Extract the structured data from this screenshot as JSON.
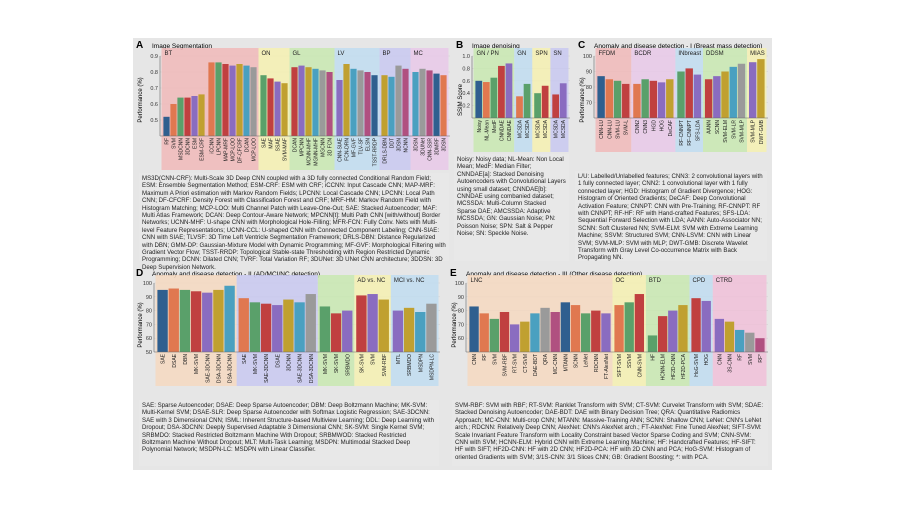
{
  "figure_background": "#e6e6e6",
  "chart_data": [
    {
      "id": "A",
      "type": "bar",
      "letter": "A",
      "title": "Image Segmentation",
      "ylabel": "Performance (%)",
      "ylim": [
        0.4,
        0.9
      ],
      "yticks": [
        "0.5",
        "0.6",
        "0.7",
        "0.8",
        "0.9"
      ],
      "groups": [
        {
          "name": "BT",
          "color": "#f0b8b8",
          "bar_color": "#2f5f8f",
          "categories": [
            "RF",
            "SVM",
            "MSDCNN",
            "3DCNN",
            "ESM",
            "ESM-CRF"
          ],
          "values": [
            0.52,
            0.6,
            0.64,
            0.64,
            0.65,
            0.66
          ]
        },
        {
          "name": "",
          "color": "#f0b8b8",
          "bar_color": "#2f5f8f",
          "categories": [
            "iCCNN",
            "LPCNN",
            "MAP-MRF",
            "MCP-LOO",
            "DF-CFCRF",
            "DCAN",
            "MCP-LOO"
          ],
          "values": [
            0.86,
            0.86,
            0.85,
            0.84,
            0.85,
            0.84,
            0.83
          ]
        },
        {
          "name": "ON",
          "color": "#f5f0b0",
          "bar_color": "#2f5f8f",
          "categories": [
            "SAE",
            "MAF",
            "SSAE",
            "SVM-MAF"
          ],
          "values": [
            0.78,
            0.76,
            0.74,
            0.73
          ]
        },
        {
          "name": "GL",
          "color": "#c8e8b0",
          "bar_color": "#2f5f8f",
          "categories": [
            "DCAN",
            "MPCNN",
            "MCNN-MHF",
            "MGNN-MHF",
            "MGCNN",
            "3D FCN"
          ],
          "values": [
            0.83,
            0.84,
            0.83,
            0.82,
            0.81,
            0.8
          ]
        },
        {
          "name": "LV",
          "color": "#c0dcf0",
          "bar_color": "#2f5f8f",
          "categories": [
            "CNN-SIAE",
            "FCN-DRN",
            "MF-GVF",
            "TLV-SF",
            "ELSN",
            "TSST-RRDP"
          ],
          "values": [
            0.75,
            0.85,
            0.82,
            0.81,
            0.8,
            0.78
          ]
        },
        {
          "name": "BP",
          "color": "#c8c8f0",
          "bar_color": "#2f5f8f",
          "categories": [
            "DRLS-DBN",
            "DDT",
            "3DSN",
            "NCNN"
          ],
          "values": [
            0.78,
            0.77,
            0.84,
            0.82
          ]
        },
        {
          "name": "MC",
          "color": "#e8c8e8",
          "bar_color": "#2f5f8f",
          "categories": [
            "3DSN",
            "3DUNet",
            "CNN-SSR",
            "3DMRF",
            "3DSN"
          ],
          "values": [
            0.8,
            0.82,
            0.81,
            0.79,
            0.78
          ]
        }
      ],
      "caption": "MS3D(CNN-CRF): Multi-Scale 3D Deep CNN coupled with a 3D fully connected Conditional Random Field; ESM: Ensemble Segmentation Method; ESM-CRF: ESM with CRF; iCCNN: Input Cascade CNN; MAP-MRF: Maximum A Priori estimation with Markov Random Fields; LPCNN: Local Cascade CNN; LPCNN: Local Path CNN; DF-CFCRF: Density Forest with Classification Forest and CRF; MRF-HM: Markov Random Field with Histogram Matching; MCP-LOO: Multi Channel Patch with Leave-One-Out; SAE: Stacked Autoencoder; MAF: Multi Atlas Framework; DCAN: Deep Contour-Aware Network; MPCNN[t]: Multi Path CNN [with/without] Border Networks; UCNN-MHF: U-shape CNN with Morphological Hole-Filling; MFR-FCN: Fully Conv. Nets with Multi-level Feature Representations; UCNN-CCL: U-shaped CNN with Connected Component Labeling; CNN-SIAE: CNN with SIAE; TLVSF: 3D Time Left Ventricle Segmentation Framework; DRLS-DBN: Distance Regularized with DBN; GMM-DP: Gaussian-Mixture Model with Dynamic Programming; MF-GVF: Morphological Filtering with Gradient Vector Flow; TSST-RRDP: Topological Stable-state Thresholding with Region Restricted Dynamic Programming; DCNN: Dilated CNN; TVRF: Total Variation RF; 3DUNet: 3D UNet CNN architecture; 3DDSN: 3D Deep Supervision Network."
    },
    {
      "id": "B",
      "type": "bar",
      "letter": "B",
      "title": "Image denoising",
      "ylabel": "SSIM Score",
      "ylim": [
        0.0,
        1.0
      ],
      "yticks": [
        "0.2",
        "0.4",
        "0.6",
        "0.8",
        "1.0"
      ],
      "groups": [
        {
          "name": "GN / PN",
          "color": "#c8e8b0",
          "bar_color": "#2f7fb0",
          "categories": [
            "Noisy",
            "NL-Mean",
            "MedF",
            "CNNDAE",
            "CNNDAE"
          ],
          "values": [
            0.6,
            0.58,
            0.65,
            0.84,
            0.88
          ]
        },
        {
          "name": "GN",
          "color": "#c0dcf0",
          "bar_color": "#2f5f8f",
          "categories": [
            "MCSDA",
            "MCSDA"
          ],
          "values": [
            0.35,
            0.55
          ]
        },
        {
          "name": "SPN",
          "color": "#f5f0b0",
          "bar_color": "#2f5f8f",
          "categories": [
            "MCSDA",
            "MCSDA"
          ],
          "values": [
            0.4,
            0.52
          ]
        },
        {
          "name": "SN",
          "color": "#c8c8f0",
          "bar_color": "#2f5f8f",
          "categories": [
            "MCSDA",
            "MCSDA"
          ],
          "values": [
            0.38,
            0.56
          ]
        }
      ],
      "caption": "Noisy: Noisy data; NL-Mean: Non Local Mean; MedF: Median Filter; CNNDAE[a]: Stacked Denoising Autoencoders with Convolutional Layers using small dataset; CNNDAE[b]: CNNDAE using combanied dataset; MCSSDA: Multi-Column Stacked Sparse DAE; AMCSSDA: Adaptive MCSSDA; GN: Gaussian Noise; PN: Poisson Noise; SPN: Salt & Pepper Noise; SN: Speckle Noise."
    },
    {
      "id": "C",
      "type": "bar",
      "letter": "C",
      "title": "Anomaly and disease detection - I (Breast mass detection)",
      "ylabel": "Performance (%)",
      "ylim": [
        60,
        100
      ],
      "yticks": [
        "70",
        "80",
        "90",
        "100"
      ],
      "groups": [
        {
          "name": "FFDM",
          "color": "#f0b8b8",
          "bar_color": "#2f5f8f",
          "categories": [
            "CNN-LU",
            "CNN-LU",
            "SVM-LU",
            "SVM-L"
          ],
          "values": [
            87,
            85,
            84,
            82
          ]
        },
        {
          "name": "BCDR",
          "color": "#e8c8e8",
          "bar_color": "#2f5f8f",
          "categories": [
            "CNN2",
            "CNN3",
            "HGD",
            "HOG",
            "DeCAF"
          ],
          "values": [
            82,
            85,
            84,
            83,
            85
          ]
        },
        {
          "name": "INbreast",
          "color": "#c0dcf0",
          "bar_color": "#2f5f8f",
          "categories": [
            "RF-CNNPT",
            "RF-CNNPT",
            "SFS-LDA"
          ],
          "values": [
            90,
            92,
            88
          ]
        },
        {
          "name": "DDSM",
          "color": "#c8e8b0",
          "bar_color": "#2f5f8f",
          "categories": [
            "AANN",
            "SCNN",
            "SVM-ELM",
            "SVM-LR",
            "SVM-MLP"
          ],
          "values": [
            85,
            87,
            90,
            93,
            95
          ]
        },
        {
          "name": "MIAS",
          "color": "#f5f0b0",
          "bar_color": "#2f5f8f",
          "categories": [
            "SVM-MLP",
            "DWT-GMB"
          ],
          "values": [
            96,
            98
          ]
        }
      ],
      "caption": "L/U: Labelled/Unlabelled features; CNN3: 2 convolutional layers with 1 fully connected layer; CNN2: 1 convolutional layer with 1 fully connected layer; HGD: Histogram of Gradient Divergence; HOG: Histogram of Oriented Gradients; DeCAF: Deep Convolutional Activation Feature; CNNPT: CNN with Pre-Training; RF-CNNPT: RF with CNNPT; RF-HF: RF with Hand-crafted Features; SFS-LDA: Sequential Forward Selection with LDA; AANN: Auto-Associator NN; SCNN: Soft Clustered NN; SVM-ELM: SVM with Extreme Learning Machine; SSVM: Structured SVM; CNN-LSVM: CNN with Linear SVM; SVM-MLP: SVM with MLP; DWT-GMB: Discrete Wavelet Transform with Gray Level Co-occurrence Matrix with Back Propagating NN."
    },
    {
      "id": "D",
      "type": "bar",
      "letter": "D",
      "title": "Anomaly and disease detection - II (AD/MCI/NC detection)",
      "ylabel": "Performance (%)",
      "ylim": [
        50,
        100
      ],
      "yticks": [
        "50",
        "60",
        "70",
        "80",
        "90",
        "100"
      ],
      "groups": [
        {
          "name": "",
          "color": "#f5d8c0",
          "bar_color": "#2f5f8f",
          "categories": [
            "SAE",
            "DSAE",
            "DBN",
            "MK-SVM",
            "SAE-3DCNN",
            "DSA-3DCNN",
            "DSA-3DCNN"
          ],
          "values": [
            95,
            96,
            95,
            94,
            93,
            95,
            98
          ]
        },
        {
          "name": "",
          "color": "#c8c8f0",
          "bar_color": "#2f5f8f",
          "categories": [
            "SAE",
            "MK-SVM",
            "SAE-3DCNN",
            "DSAE",
            "3DCNN",
            "SAE-3DCNN",
            "DSA-3DCNN"
          ],
          "values": [
            89,
            86,
            85,
            84,
            88,
            86,
            92
          ]
        },
        {
          "name": "",
          "color": "#c8e8b0",
          "bar_color": "#2f5f8f",
          "categories": [
            "MK-SVM",
            "SK-SVM",
            "SRBMDO"
          ],
          "values": [
            83,
            78,
            80
          ]
        },
        {
          "name": "AD vs. NC",
          "color": "#f5f0b0",
          "bar_color": "#2f5f8f",
          "categories": [
            "SK-SVM",
            "SVM",
            "SVM-RBF"
          ],
          "values": [
            91,
            92,
            88
          ]
        },
        {
          "name": "MCI vs. NC",
          "color": "#c0dcf0",
          "bar_color": "#2f5f8f",
          "categories": [
            "MTL",
            "SRBMDO",
            "MSDPN",
            "MSDPN-LC"
          ],
          "values": [
            80,
            82,
            79,
            85
          ]
        }
      ],
      "caption": "SAE: Sparse Autoencoder; DSAE: Deep Sparse Autoencoder; DBM: Deep Boltzmann Machine; MK-SVM: Multi-Kernel SVM; DSAE-SLR: Deep Sparse Autoencoder with Softmax Logistic Regression; SAE-3DCNN: SAE with 3 Dimensional CNN; ISML: Inherent Structure-based Multiview Learning; DDL: Deep Learning with Dropout; DSA-3DCNN: Deeply Supervised Adaptable 3 Dimensional CNN; SK-SVM: Single Kernel SVM; SRBMDO: Stacked Restricted Boltzmann Machine With Dropout; SRBMWOD: Stacked Restricted Boltzmann Machine Without Dropout; MLT: Multi-Task Learning; MSDPN: Multimodal Stacked Deep Polynomial Network; MSDPN-LC: MSDPN with Linear Classifier."
    },
    {
      "id": "E",
      "type": "bar",
      "letter": "E",
      "title": "Anomaly and disease detection - III (Other disease detection)",
      "ylabel": "Performance (%)",
      "ylim": [
        50,
        100
      ],
      "yticks": [
        "60",
        "70",
        "80",
        "90",
        "100"
      ],
      "groups": [
        {
          "name": "LNC",
          "color": "#f5d8c0",
          "bar_color": "#2f5f8f",
          "categories": [
            "CNN",
            "RF",
            "SVM",
            "SVM-RBF",
            "RT-SVM",
            "CT-SVM",
            "DAE-BDT",
            "QRA",
            "MC-CNN",
            "MTANN",
            "SCNN",
            "LeNet",
            "RDCNN",
            "FT-AlexNet"
          ],
          "values": [
            83,
            78,
            74,
            79,
            70,
            72,
            78,
            82,
            79,
            86,
            84,
            78,
            80,
            78
          ]
        },
        {
          "name": "OC",
          "color": "#f5f0b0",
          "bar_color": "#2f5f8f",
          "categories": [
            "SIFT-SVM",
            "SSVM",
            "CNN-SVM"
          ],
          "values": [
            84,
            86,
            92
          ]
        },
        {
          "name": "BTD",
          "color": "#c8e8b0",
          "bar_color": "#2f5f8f",
          "categories": [
            "HF",
            "HCNN-ELM",
            "HF2D-CNN",
            "HF2D-PCA"
          ],
          "values": [
            62,
            76,
            80,
            84
          ]
        },
        {
          "name": "CPD",
          "color": "#c0dcf0",
          "bar_color": "#2f5f8f",
          "categories": [
            "HoG-SVM",
            "HOG"
          ],
          "values": [
            89,
            87
          ]
        },
        {
          "name": "CTRD",
          "color": "#f0c0d8",
          "bar_color": "#2f5f8f",
          "categories": [
            "CNN",
            "3S-CNN",
            "RF",
            "SVM",
            "RF*"
          ],
          "values": [
            74,
            72,
            66,
            64,
            60
          ]
        }
      ],
      "caption": "SVM-RBF: SVM with RBF; RT-SVM: Ranklet Transform with SVM; CT-SVM: Curvelet Transform with SVM; SDAE: Stacked Denoising Autoencoder; DAE-BDT: DAE with Binary Decision Tree; QRA: Quantitative Radiomics Approach; MC-CNN: Multi-crop CNN; MTANN: Massive-Training ANN; SCNN: Shallow CNN; LeNet: CNN's LeNet arch.; RDCNN: Relatively Deep CNN; AlexNet: CNN's AlexNet arch.; FT-AlexNet: Fine Tuned AlexNet; SIFT-SVM: Scale Invariant Feature Transform with Locality Constraint based Vector Sparse Coding and SVM; CNN-SVM: CNN with SVM; HCNN-ELM: Hybrid CNN with Extreme Learning Machine; HF: Handcrafted Features; HF-SIFT: HF with SIFT; HF2D-CNN: HF with 2D CNN; HF2D-PCA: HF with 2D CNN and PCA; HoG-SVM: Histogram of oriented Gradients with SVM; 3/1S-CNN: 3/1 Slices CNN; GB: Gradient Boosting; *: with PCA."
    }
  ]
}
